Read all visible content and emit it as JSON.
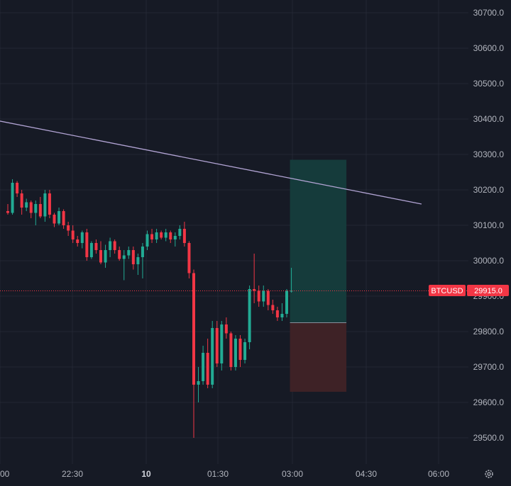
{
  "colors": {
    "background": "#161a25",
    "grid": "#232734",
    "axis_text": "#b2b5be",
    "up": "#22ab94",
    "down": "#f23645",
    "trendline": "#b2a4d4",
    "price_line": "#f23645",
    "target_zone": "#153b3b",
    "stop_zone": "#3e2226"
  },
  "icons": {
    "settings": "gear-icon"
  },
  "chart_data": {
    "type": "candlestick",
    "symbol": "BTCUSD",
    "last_price": 29915.0,
    "last_price_label": "29915.0",
    "ylim": [
      29440,
      30730
    ],
    "y_ticks": [
      {
        "value": 30700,
        "label": "30700.0"
      },
      {
        "value": 30600,
        "label": "30600.0"
      },
      {
        "value": 30500,
        "label": "30500.0"
      },
      {
        "value": 30400,
        "label": "30400.0"
      },
      {
        "value": 30300,
        "label": "30300.0"
      },
      {
        "value": 30200,
        "label": "30200.0"
      },
      {
        "value": 30100,
        "label": "30100.0"
      },
      {
        "value": 30000,
        "label": "30000.0"
      },
      {
        "value": 29900,
        "label": "29900.0"
      },
      {
        "value": 29800,
        "label": "29800.0"
      },
      {
        "value": 29700,
        "label": "29700.0"
      },
      {
        "value": 29600,
        "label": "29600.0"
      },
      {
        "value": 29500,
        "label": "29500.0"
      }
    ],
    "x_ticks": [
      {
        "label": "00",
        "bold": false
      },
      {
        "label": "22:30",
        "bold": false
      },
      {
        "label": "10",
        "bold": true
      },
      {
        "label": "01:30",
        "bold": false
      },
      {
        "label": "03:00",
        "bold": false
      },
      {
        "label": "04:30",
        "bold": false
      },
      {
        "label": "06:00",
        "bold": false
      }
    ],
    "candles": [
      [
        30140,
        30160,
        30130,
        30135
      ],
      [
        30135,
        30230,
        30130,
        30220
      ],
      [
        30220,
        30225,
        30180,
        30190
      ],
      [
        30190,
        30200,
        30130,
        30150
      ],
      [
        30150,
        30175,
        30140,
        30165
      ],
      [
        30165,
        30170,
        30120,
        30135
      ],
      [
        30135,
        30170,
        30100,
        30160
      ],
      [
        30160,
        30180,
        30120,
        30125
      ],
      [
        30125,
        30200,
        30110,
        30190
      ],
      [
        30190,
        30200,
        30120,
        30130
      ],
      [
        30130,
        30135,
        30095,
        30105
      ],
      [
        30105,
        30150,
        30100,
        30140
      ],
      [
        30140,
        30145,
        30090,
        30100
      ],
      [
        30100,
        30110,
        30070,
        30085
      ],
      [
        30085,
        30100,
        30050,
        30060
      ],
      [
        30060,
        30070,
        30040,
        30050
      ],
      [
        30050,
        30085,
        30035,
        30080
      ],
      [
        30080,
        30090,
        30000,
        30010
      ],
      [
        30010,
        30055,
        30005,
        30050
      ],
      [
        30050,
        30060,
        30020,
        30030
      ],
      [
        30030,
        30055,
        29990,
        29995
      ],
      [
        29995,
        30045,
        29980,
        30030
      ],
      [
        30030,
        30065,
        30010,
        30055
      ],
      [
        30055,
        30060,
        30020,
        30030
      ],
      [
        30030,
        30040,
        30000,
        30005
      ],
      [
        30005,
        30030,
        29945,
        30015
      ],
      [
        30015,
        30040,
        30005,
        30030
      ],
      [
        30030,
        30040,
        29975,
        29990
      ],
      [
        29990,
        30020,
        29960,
        30010
      ],
      [
        30010,
        30050,
        29950,
        30040
      ],
      [
        30040,
        30085,
        30030,
        30075
      ],
      [
        30075,
        30090,
        30050,
        30060
      ],
      [
        30060,
        30090,
        30050,
        30080
      ],
      [
        30080,
        30085,
        30060,
        30065
      ],
      [
        30065,
        30090,
        30055,
        30080
      ],
      [
        30080,
        30085,
        30050,
        30060
      ],
      [
        30060,
        30080,
        30040,
        30070
      ],
      [
        30070,
        30100,
        30060,
        30090
      ],
      [
        30090,
        30110,
        30040,
        30050
      ],
      [
        30050,
        30055,
        29950,
        29965
      ],
      [
        29965,
        29975,
        29500,
        29650
      ],
      [
        29650,
        29700,
        29600,
        29660
      ],
      [
        29660,
        29760,
        29650,
        29740
      ],
      [
        29740,
        29780,
        29640,
        29650
      ],
      [
        29650,
        29830,
        29640,
        29810
      ],
      [
        29810,
        29830,
        29700,
        29710
      ],
      [
        29710,
        29830,
        29690,
        29820
      ],
      [
        29820,
        29840,
        29780,
        29795
      ],
      [
        29795,
        29800,
        29690,
        29700
      ],
      [
        29700,
        29790,
        29690,
        29780
      ],
      [
        29780,
        29790,
        29700,
        29720
      ],
      [
        29720,
        29780,
        29710,
        29770
      ],
      [
        29770,
        29930,
        29750,
        29920
      ],
      [
        29920,
        30020,
        29880,
        29915
      ],
      [
        29915,
        29930,
        29870,
        29885
      ],
      [
        29885,
        29930,
        29870,
        29915
      ],
      [
        29915,
        29920,
        29860,
        29875
      ],
      [
        29875,
        29890,
        29850,
        29860
      ],
      [
        29860,
        29870,
        29830,
        29840
      ],
      [
        29840,
        29880,
        29830,
        29850
      ],
      [
        29850,
        29920,
        29840,
        29915
      ],
      [
        29915,
        29980,
        29910,
        29915
      ]
    ],
    "trendline": {
      "start": [
        -2,
        30395
      ],
      "end": [
        89,
        30160
      ]
    },
    "position": {
      "type": "long",
      "entry": 29825,
      "target": 30285,
      "stop": 29630,
      "start_index": 61,
      "end_index": 71
    }
  }
}
